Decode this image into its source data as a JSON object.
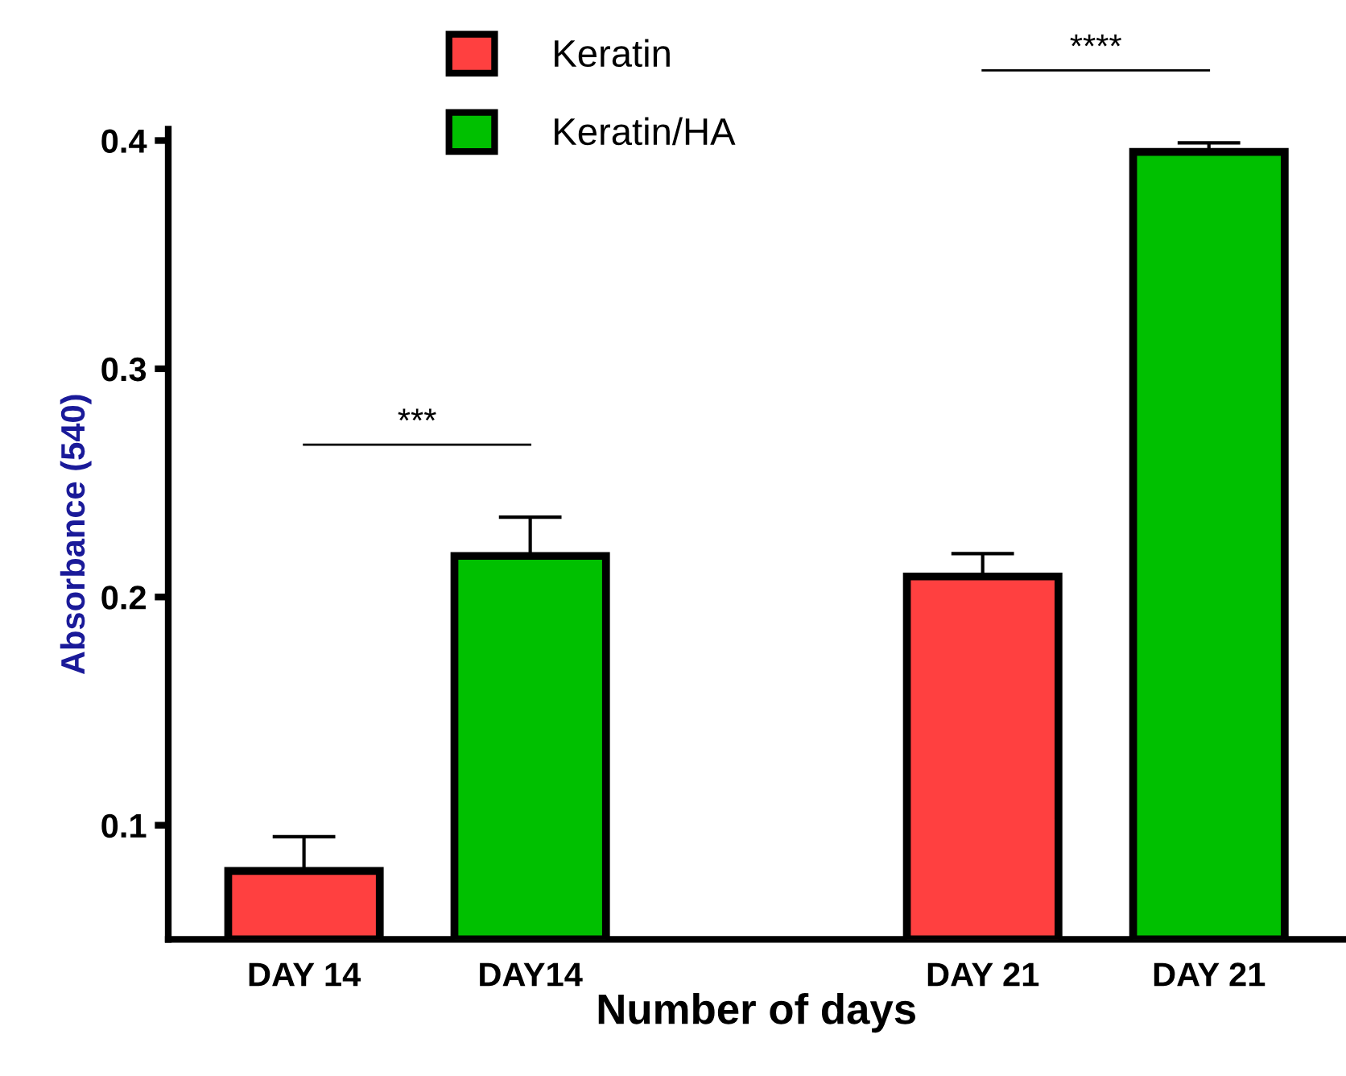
{
  "chart_data": {
    "type": "bar",
    "categories": [
      "DAY 14",
      "DAY14",
      null,
      "DAY 21",
      "DAY 21"
    ],
    "series": [
      {
        "name": "Keratin",
        "color": "#ff4040",
        "values": [
          0.08,
          null,
          null,
          0.209,
          null
        ],
        "errors": [
          [
            0.08,
            0.095
          ],
          null,
          null,
          [
            0.209,
            0.219
          ],
          null
        ]
      },
      {
        "name": "Keratin/HA",
        "color": "#00c000",
        "values": [
          null,
          0.218,
          null,
          null,
          0.395
        ],
        "errors": [
          null,
          [
            0.218,
            0.235
          ],
          null,
          null,
          [
            0.395,
            0.399
          ]
        ]
      }
    ],
    "xlabel": "Number of days",
    "ylabel": "Absorbance (540)",
    "ylim": [
      0.05,
      0.405
    ],
    "yticks": [
      0.1,
      0.2,
      0.3,
      0.4
    ],
    "annotations": [
      "***",
      "****"
    ],
    "legend": "top",
    "grid": false
  }
}
